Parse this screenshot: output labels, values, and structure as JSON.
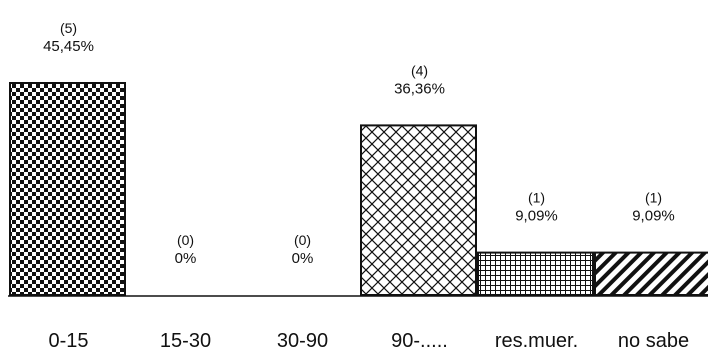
{
  "chart_data": {
    "type": "bar",
    "title": "",
    "xlabel": "",
    "ylabel": "",
    "categories": [
      "0-15",
      "15-30",
      "30-90",
      "90-.....",
      "res.muer.",
      "no sabe"
    ],
    "counts": [
      5,
      0,
      0,
      4,
      1,
      1
    ],
    "count_labels": [
      "(5)",
      "(0)",
      "(0)",
      "(4)",
      "(1)",
      "(1)"
    ],
    "values": [
      45.45,
      0,
      0,
      36.36,
      9.09,
      9.09
    ],
    "value_labels": [
      "45,45%",
      "0%",
      "0%",
      "36,36%",
      "9,09%",
      "9,09%"
    ],
    "fill_patterns": [
      "checkerboard",
      "none",
      "none",
      "diamond-crosshatch",
      "grid",
      "diagonal-stripes"
    ],
    "ylim": [
      0,
      45.45
    ],
    "grid": false,
    "legend": "none",
    "bar_color": "#111111",
    "background": "#ffffff"
  }
}
